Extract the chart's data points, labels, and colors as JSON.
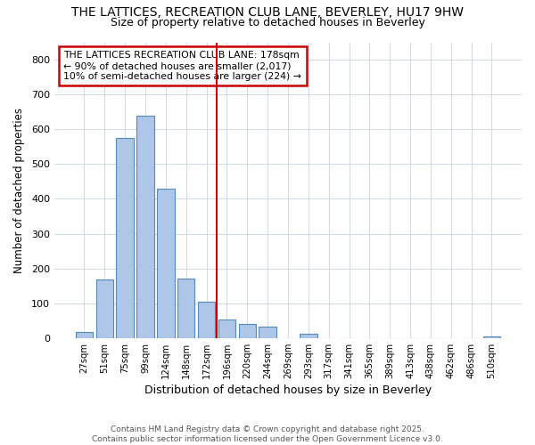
{
  "title_line1": "THE LATTICES, RECREATION CLUB LANE, BEVERLEY, HU17 9HW",
  "title_line2": "Size of property relative to detached houses in Beverley",
  "xlabel": "Distribution of detached houses by size in Beverley",
  "ylabel": "Number of detached properties",
  "categories": [
    "27sqm",
    "51sqm",
    "75sqm",
    "99sqm",
    "124sqm",
    "148sqm",
    "172sqm",
    "196sqm",
    "220sqm",
    "244sqm",
    "269sqm",
    "293sqm",
    "317sqm",
    "341sqm",
    "365sqm",
    "389sqm",
    "413sqm",
    "438sqm",
    "462sqm",
    "486sqm",
    "510sqm"
  ],
  "values": [
    18,
    168,
    575,
    640,
    430,
    170,
    105,
    52,
    40,
    32,
    0,
    12,
    0,
    0,
    0,
    0,
    0,
    0,
    0,
    0,
    5
  ],
  "bar_color": "#aec6e8",
  "bar_edge_color": "#5588bb",
  "vline_x_index": 6,
  "vline_color": "#cc0000",
  "annotation_text": "THE LATTICES RECREATION CLUB LANE: 178sqm\n← 90% of detached houses are smaller (2,017)\n10% of semi-detached houses are larger (224) →",
  "annotation_box_color": "#ffffff",
  "annotation_box_edge": "#cc0000",
  "ylim": [
    0,
    850
  ],
  "yticks": [
    0,
    100,
    200,
    300,
    400,
    500,
    600,
    700,
    800
  ],
  "footer_text": "Contains HM Land Registry data © Crown copyright and database right 2025.\nContains public sector information licensed under the Open Government Licence v3.0.",
  "bg_color": "#ffffff",
  "plot_bg_color": "#ffffff",
  "grid_color": "#c8d4e0"
}
